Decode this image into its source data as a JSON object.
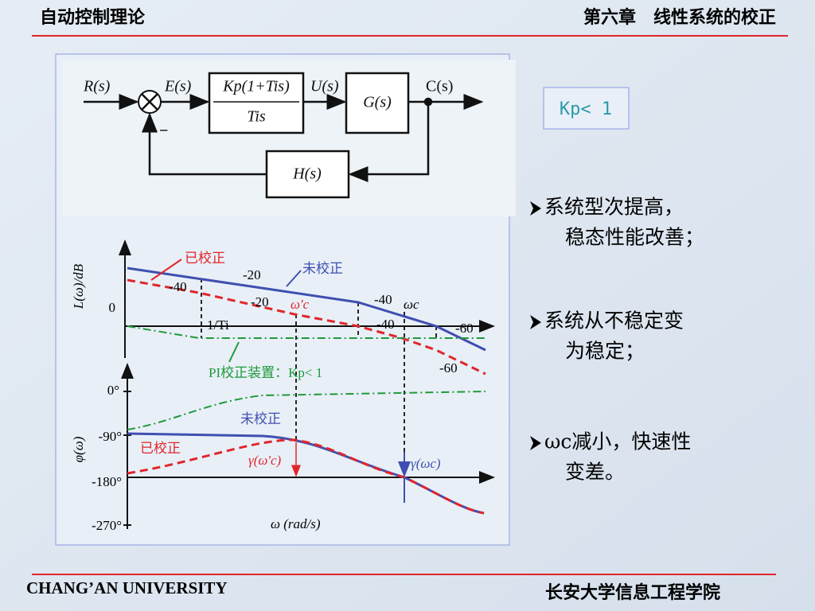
{
  "header": {
    "left": "自动控制理论",
    "right": "第六章　线性系统的校正"
  },
  "block_diagram": {
    "input": "R(s)",
    "error": "E(s)",
    "numerator": "Kp(1+Tis)",
    "denominator": "Tis",
    "control": "U(s)",
    "plant": "G(s)",
    "output": "C(s)",
    "feedback": "H(s)",
    "sign": "−"
  },
  "bode": {
    "mag_axis_label": "L(ω)/dB",
    "mag_zero": "0",
    "mag_labels": {
      "corrected": "已校正",
      "slope_20_top": "-20",
      "uncorrected": "未校正",
      "slope_40_left": "-40",
      "slope_20_mid": "-20",
      "wc_prime": "ω'c",
      "slope_40_top": "-40",
      "wc": "ωc",
      "slope_40_mid": "-40",
      "slope_60_top": "-60",
      "inv_ti": "1/Ti",
      "slope_60_bottom": "-60",
      "pi_device": "PI校正装置：Kp< 1"
    },
    "phase_axis_label": "φ(ω)",
    "phase_ticks": [
      "0°",
      "-90°",
      "-180°",
      "-270°"
    ],
    "phase_labels": {
      "uncorrected": "未校正",
      "corrected": "已校正",
      "gamma_prime": "γ(ω'c)",
      "gamma": "γ(ωc)"
    },
    "x_axis_label": "ω (rad/s)"
  },
  "note_box": "Kp< 1",
  "bullets": [
    [
      "系统型次提高，",
      "稳态性能改善；"
    ],
    [
      "系统从不稳定变",
      "为稳定；"
    ],
    [
      "ωc减小，快速性",
      "变差。"
    ]
  ],
  "footer": {
    "left": "CHANG’AN UNIVERSITY",
    "right": "长安大学信息工程学院"
  }
}
